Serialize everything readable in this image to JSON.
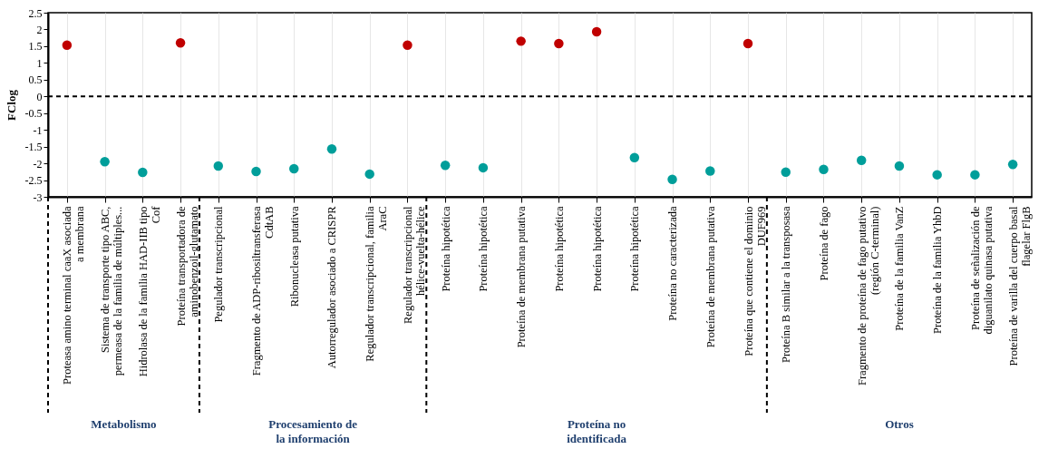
{
  "chart_data": {
    "type": "scatter",
    "ylabel": "FClog",
    "categories": [
      "Proteasa amino terminal caaX asociada a membrana",
      "Sistema de transporte tipo ABC, permeasa de la familia de múltiples...",
      "Hidrolasa de la familia HAD-IIB tipo Cof",
      "Proteína transportadora de aminobenzoil-glutamato",
      "Pegulador transcripcional",
      "Fragmento de ADP-ribosiltransferasa CdtAB",
      "Ribonucleasa putativa",
      "Autorregulador asociado a CRISPR",
      "Regulador transcripcional, familia AraC",
      "Regulador transcripcional hélice-vuelta-hélice",
      "Proteína hipotética",
      "Proteína hipotética",
      "Proteína de membrana putativa",
      "Proteína hipotética",
      "Proteína hipotética",
      "Proteína hipotética",
      "Proteína no caracterizada",
      "Proteína de membrana putativa",
      "Proteína que contiene el dominio DUF969",
      "Proteína B similar a la transposasa",
      "Proteína de fago",
      "Fragmento de proteína de fago putativo (región C-terminal)",
      "Proteína de la familia VanZ",
      "Proteína de la familia YhbD",
      "Proteína de señalización de diguanilato quinasa putativa",
      "Proteína de varilla del cuerpo basal flagelar FlgB"
    ],
    "series": [
      {
        "color": "#c00000",
        "values": [
          1.53,
          null,
          null,
          1.6,
          null,
          null,
          null,
          null,
          null,
          1.53,
          null,
          null,
          1.65,
          1.58,
          1.93,
          null,
          null,
          null,
          1.58,
          null,
          null,
          null,
          null,
          null,
          null,
          null
        ]
      },
      {
        "color": "#009e9a",
        "values": [
          null,
          -1.95,
          -2.27,
          null,
          -2.08,
          -2.24,
          -2.16,
          -1.57,
          -2.32,
          null,
          -2.06,
          -2.13,
          null,
          null,
          null,
          -1.83,
          -2.48,
          -2.23,
          null,
          -2.26,
          -2.18,
          -1.91,
          -2.08,
          -2.34,
          -2.34,
          -2.03
        ]
      }
    ],
    "ylim": [
      -3,
      2.5
    ],
    "yticks": [
      -3,
      -2.5,
      -2,
      -1.5,
      -1,
      -0.5,
      0,
      0.5,
      1,
      1.5,
      2,
      2.5
    ],
    "ref_lines": [
      {
        "axis": "y",
        "value": 0,
        "line_style": "dashed",
        "color": "#000000"
      }
    ],
    "annotations": [
      "Metabolismo",
      "Procesamiento de la información",
      "Proteína no identificada",
      "Otros"
    ],
    "grid": "x",
    "marker": "circle",
    "legend": false
  }
}
